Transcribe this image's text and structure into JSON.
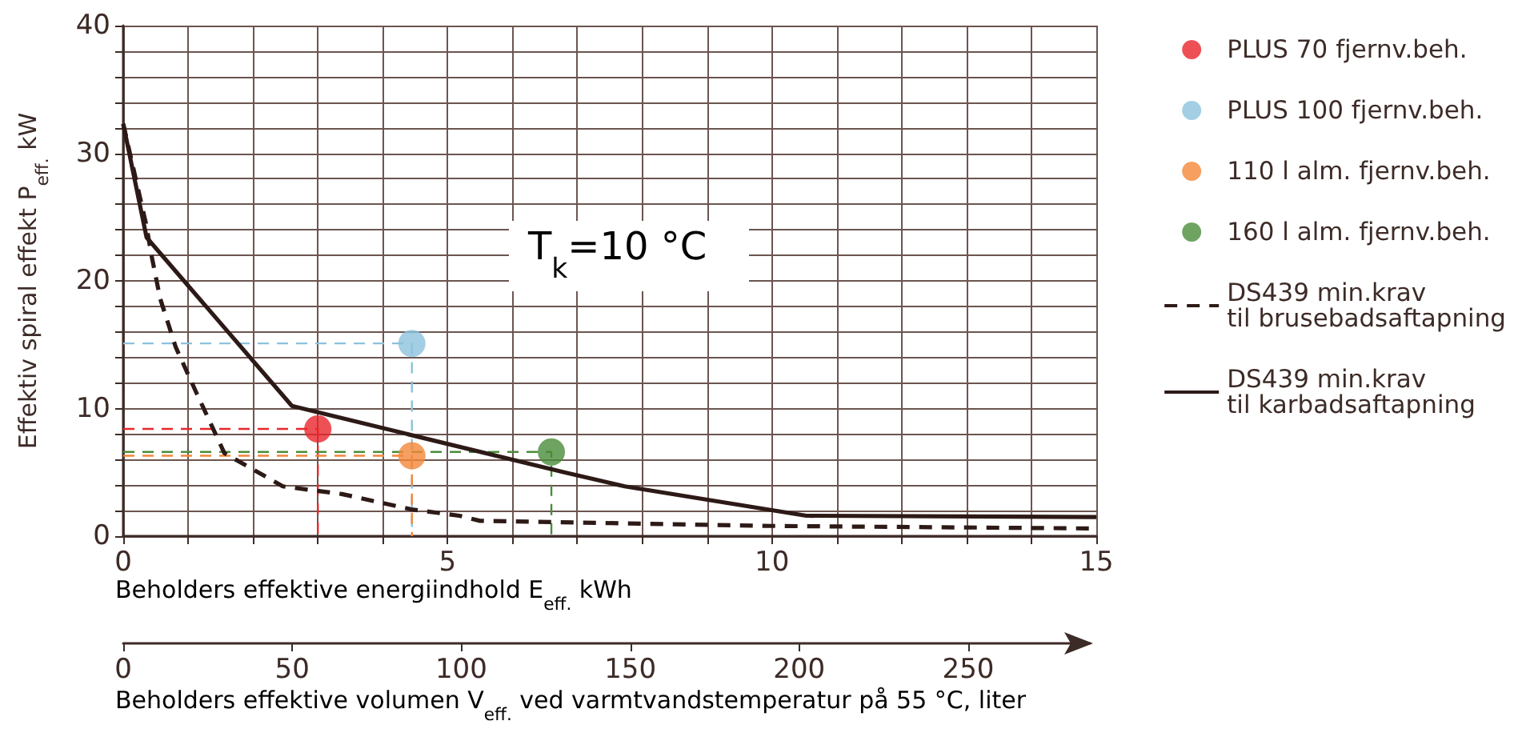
{
  "chart_data": {
    "type": "line",
    "xlabel": "Beholders effektive energiindhold E$_{eff.}$ kWh",
    "ylabel": "Effektiv spiral effekt P$_{eff.}$ kW",
    "x2label": "Beholders effektive volumen V$_{eff.}$ ved varmtvandstemperatur på 55 °C, liter",
    "annotations": [
      "T$_{k}$=10 °C"
    ],
    "xlim": [
      0,
      15
    ],
    "xticks": [
      0,
      {
        "value": 1,
        "label": null
      },
      {
        "value": 2,
        "label": null
      },
      {
        "value": 3,
        "label": null
      },
      {
        "value": 4,
        "label": null
      },
      5,
      {
        "value": 6,
        "label": null
      },
      {
        "value": 7,
        "label": null
      },
      {
        "value": 8,
        "label": null
      },
      {
        "value": 9,
        "label": null
      },
      10,
      {
        "value": 11,
        "label": null
      },
      {
        "value": 12,
        "label": null
      },
      {
        "value": 13,
        "label": null
      },
      {
        "value": 14,
        "label": null
      },
      15
    ],
    "ylim": [
      0,
      40
    ],
    "yticks": [
      0,
      {
        "value": 2,
        "label": null
      },
      {
        "value": 4,
        "label": null
      },
      {
        "value": 6,
        "label": null
      },
      {
        "value": 8,
        "label": null
      },
      10,
      {
        "value": 12,
        "label": null
      },
      {
        "value": 14,
        "label": null
      },
      {
        "value": 16,
        "label": null
      },
      {
        "value": 18,
        "label": null
      },
      20,
      {
        "value": 22,
        "label": null
      },
      {
        "value": 24,
        "label": null
      },
      {
        "value": 26,
        "label": null
      },
      {
        "value": 28,
        "label": null
      },
      30,
      {
        "value": 32,
        "label": null
      },
      {
        "value": 34,
        "label": null
      },
      {
        "value": 36,
        "label": null
      },
      {
        "value": 38,
        "label": null
      },
      40
    ],
    "x2lim": [
      0,
      286
    ],
    "x2ticks": [
      0,
      50,
      100,
      150,
      200,
      250
    ],
    "grid": true,
    "legend": "right",
    "series": [
      {
        "name": "PLUS 70 fjernv.beh.",
        "type": "scatter",
        "marker": "circle",
        "color": "#e8262b",
        "x": [
          3.0
        ],
        "values": [
          8.4
        ]
      },
      {
        "name": "PLUS 100 fjernv.beh.",
        "type": "scatter",
        "marker": "circle",
        "color": "#8cc2dc",
        "x": [
          4.45
        ],
        "values": [
          15.1
        ]
      },
      {
        "name": "110 l alm. fjernv.beh.",
        "type": "scatter",
        "marker": "circle",
        "color": "#f4873a",
        "x": [
          4.45
        ],
        "values": [
          6.3
        ]
      },
      {
        "name": "160 l alm. fjernv.beh.",
        "type": "scatter",
        "marker": "circle",
        "color": "#4a8c3a",
        "x": [
          6.6
        ],
        "values": [
          6.6
        ]
      },
      {
        "name": "DS439 min.krav\ntil brusebadsaftapning",
        "type": "line",
        "line_style": "dashed",
        "color": "#2d1a17",
        "x": [
          0,
          0.35,
          0.44,
          0.57,
          0.81,
          1.14,
          1.56,
          2.46,
          3.37,
          4.44,
          5.18,
          5.5,
          10,
          15
        ],
        "values": [
          32.3,
          24.5,
          21.9,
          18.6,
          14.8,
          11.1,
          6.5,
          3.9,
          3.3,
          2.1,
          1.6,
          1.2,
          0.8,
          0.6
        ]
      },
      {
        "name": "DS439 min.krav\ntil karbadsaftapning",
        "type": "line",
        "line_style": "solid",
        "color": "#2d1a17",
        "x": [
          0,
          0.36,
          2.6,
          6.8,
          7.73,
          10.53,
          15
        ],
        "values": [
          32.3,
          23.4,
          10.2,
          5.0,
          3.9,
          1.6,
          1.5
        ]
      },
      {
        "type": "line",
        "line_style": "dashed",
        "color": "#e8262b",
        "x": [
          0,
          3.0,
          3.0
        ],
        "values": [
          8.4,
          8.4,
          0
        ]
      },
      {
        "type": "line",
        "line_style": "dashed",
        "color": "#8cc2dc",
        "x": [
          0,
          4.45,
          4.45
        ],
        "values": [
          15.1,
          15.1,
          0
        ]
      },
      {
        "type": "line",
        "line_style": "dashed",
        "color": "#f4873a",
        "x": [
          0,
          4.45,
          4.45
        ],
        "values": [
          6.3,
          6.3,
          0
        ]
      },
      {
        "type": "line",
        "line_style": "dashed",
        "color": "#4a8c3a",
        "x": [
          0,
          6.6,
          6.6
        ],
        "values": [
          6.6,
          6.6,
          0
        ]
      }
    ]
  }
}
